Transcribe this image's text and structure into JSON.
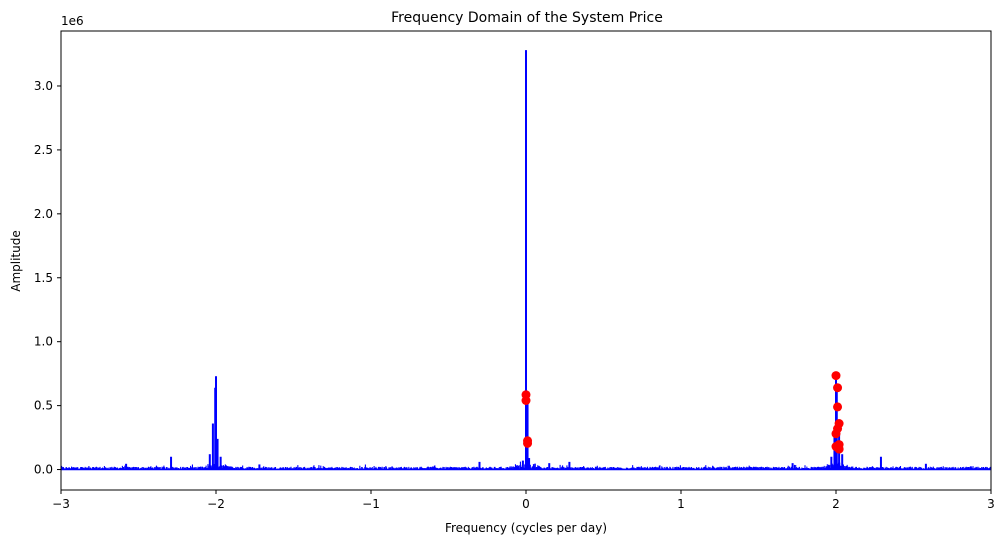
{
  "chart_data": {
    "type": "line",
    "title": "Frequency Domain of the System Price",
    "xlabel": "Frequency (cycles per day)",
    "ylabel": "Amplitude",
    "y_offset_label": "1e6",
    "xlim": [
      -3,
      3
    ],
    "ylim": [
      -0.16,
      3.43
    ],
    "x_ticks": [
      -3,
      -2,
      -1,
      0,
      1,
      2,
      3
    ],
    "x_tick_labels": [
      "−3",
      "−2",
      "−1",
      "0",
      "1",
      "2",
      "3"
    ],
    "y_ticks": [
      0.0,
      0.5,
      1.0,
      1.5,
      2.0,
      2.5,
      3.0
    ],
    "y_tick_labels": [
      "0.0",
      "0.5",
      "1.0",
      "1.5",
      "2.0",
      "2.5",
      "3.0"
    ],
    "grid": false,
    "line_color": "#0000ff",
    "marker_color": "#ff0000",
    "spectrum_peaks": [
      {
        "x": -2.87,
        "y": 0.02
      },
      {
        "x": -2.58,
        "y": 0.045
      },
      {
        "x": -2.29,
        "y": 0.1
      },
      {
        "x": -2.04,
        "y": 0.12
      },
      {
        "x": -2.02,
        "y": 0.36
      },
      {
        "x": -2.005,
        "y": 0.64
      },
      {
        "x": -2.0,
        "y": 0.73
      },
      {
        "x": -1.99,
        "y": 0.24
      },
      {
        "x": -1.97,
        "y": 0.1
      },
      {
        "x": -1.72,
        "y": 0.04
      },
      {
        "x": -0.3,
        "y": 0.06
      },
      {
        "x": -0.02,
        "y": 0.07
      },
      {
        "x": 0.0,
        "y": 3.28
      },
      {
        "x": 0.01,
        "y": 0.58
      },
      {
        "x": 0.02,
        "y": 0.09
      },
      {
        "x": 0.15,
        "y": 0.05
      },
      {
        "x": 0.28,
        "y": 0.06
      },
      {
        "x": 1.72,
        "y": 0.05
      },
      {
        "x": 1.97,
        "y": 0.1
      },
      {
        "x": 1.99,
        "y": 0.3
      },
      {
        "x": 2.0,
        "y": 0.73
      },
      {
        "x": 2.005,
        "y": 0.64
      },
      {
        "x": 2.02,
        "y": 0.36
      },
      {
        "x": 2.04,
        "y": 0.12
      },
      {
        "x": 2.29,
        "y": 0.1
      },
      {
        "x": 2.58,
        "y": 0.045
      },
      {
        "x": 2.87,
        "y": 0.025
      }
    ],
    "marked_points": [
      {
        "x": 0.0,
        "y": 0.585
      },
      {
        "x": 0.0,
        "y": 0.54
      },
      {
        "x": 0.01,
        "y": 0.225
      },
      {
        "x": 0.01,
        "y": 0.205
      },
      {
        "x": 2.0,
        "y": 0.735
      },
      {
        "x": 2.01,
        "y": 0.64
      },
      {
        "x": 2.01,
        "y": 0.49
      },
      {
        "x": 2.02,
        "y": 0.36
      },
      {
        "x": 2.01,
        "y": 0.32
      },
      {
        "x": 2.0,
        "y": 0.28
      },
      {
        "x": 2.02,
        "y": 0.195
      },
      {
        "x": 2.0,
        "y": 0.18
      },
      {
        "x": 2.02,
        "y": 0.16
      }
    ]
  }
}
